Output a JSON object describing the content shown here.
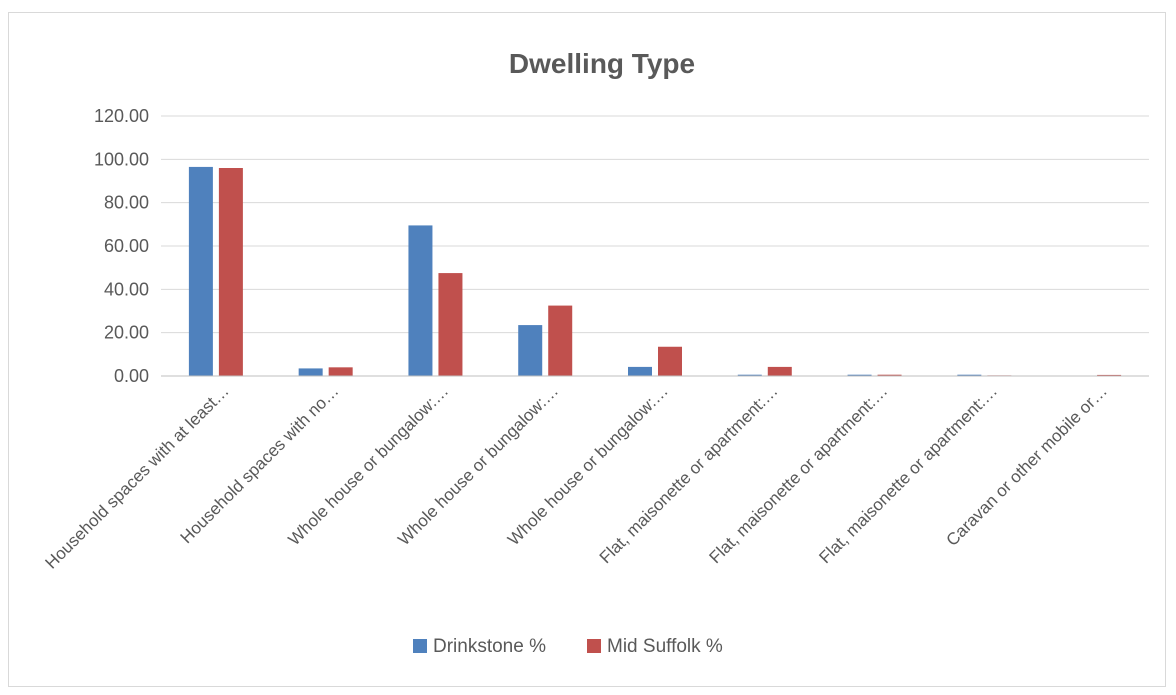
{
  "chart_data": {
    "type": "bar",
    "title": "Dwelling Type",
    "xlabel": "",
    "ylabel": "",
    "ylim": [
      0,
      120
    ],
    "yticks": [
      "0.00",
      "20.00",
      "40.00",
      "60.00",
      "80.00",
      "100.00",
      "120.00"
    ],
    "grid": true,
    "legend_position": "bottom",
    "categories": [
      "Household spaces with at least…",
      "Household spaces with no…",
      "Whole house or bungalow:…",
      "Whole house or bungalow:…",
      "Whole house or bungalow:…",
      "Flat, maisonette or apartment:…",
      "Flat, maisonette or apartment:…",
      "Flat, maisonette or apartment:…",
      "Caravan or other mobile or…"
    ],
    "series": [
      {
        "name": "Drinkstone %",
        "color": "#4f81bd",
        "values": [
          96.5,
          3.5,
          69.5,
          23.5,
          4.2,
          0.6,
          0.6,
          0.6,
          0.0
        ]
      },
      {
        "name": "Mid Suffolk %",
        "color": "#c0504d",
        "values": [
          96.0,
          4.0,
          47.5,
          32.5,
          13.5,
          4.2,
          0.6,
          0.3,
          0.5
        ]
      }
    ]
  }
}
